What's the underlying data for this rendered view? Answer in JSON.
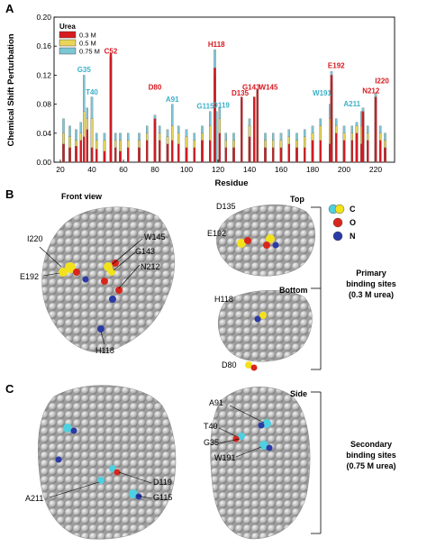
{
  "panels": {
    "a": "A",
    "b": "B",
    "c": "C"
  },
  "colors": {
    "s03": "#d71920",
    "s05": "#e8d55a",
    "s075": "#7cc6d6",
    "red_label": "#d71920",
    "cyan_label": "#3bb0c9",
    "protein": "#b8b8b8",
    "atom_c_yellow": "#f2e21c",
    "atom_c_cyan": "#4fd0e0",
    "atom_o": "#d9261c",
    "atom_n": "#2b3aa5"
  },
  "chart_data": {
    "type": "bar",
    "title": "",
    "xlabel": "Residue",
    "ylabel": "Chemical Shift Perturbation",
    "xlim": [
      16,
      232
    ],
    "ylim": [
      0,
      0.2
    ],
    "xticks": [
      20,
      40,
      60,
      80,
      100,
      120,
      140,
      160,
      180,
      200,
      220
    ],
    "yticks": [
      0.0,
      0.04,
      0.08,
      0.12,
      0.16,
      0.2
    ],
    "legend_title": "Urea",
    "legend_position": "top-left",
    "series": [
      {
        "name": "0.3 M",
        "color": "#d71920",
        "points": [
          [
            22,
            0.025
          ],
          [
            26,
            0.02
          ],
          [
            30,
            0.022
          ],
          [
            33,
            0.03
          ],
          [
            35,
            0.035
          ],
          [
            37,
            0.045
          ],
          [
            40,
            0.02
          ],
          [
            43,
            0.018
          ],
          [
            48,
            0.015
          ],
          [
            52,
            0.15
          ],
          [
            55,
            0.02
          ],
          [
            58,
            0.015
          ],
          [
            63,
            0.02
          ],
          [
            70,
            0.02
          ],
          [
            75,
            0.03
          ],
          [
            80,
            0.06
          ],
          [
            83,
            0.03
          ],
          [
            88,
            0.025
          ],
          [
            91,
            0.03
          ],
          [
            95,
            0.025
          ],
          [
            100,
            0.02
          ],
          [
            105,
            0.02
          ],
          [
            110,
            0.03
          ],
          [
            115,
            0.03
          ],
          [
            118,
            0.13
          ],
          [
            121,
            0.04
          ],
          [
            125,
            0.02
          ],
          [
            130,
            0.02
          ],
          [
            135,
            0.09
          ],
          [
            140,
            0.035
          ],
          [
            143,
            0.09
          ],
          [
            145,
            0.1
          ],
          [
            150,
            0.02
          ],
          [
            155,
            0.02
          ],
          [
            160,
            0.02
          ],
          [
            165,
            0.025
          ],
          [
            170,
            0.02
          ],
          [
            175,
            0.02
          ],
          [
            180,
            0.03
          ],
          [
            185,
            0.03
          ],
          [
            191,
            0.025
          ],
          [
            192,
            0.12
          ],
          [
            195,
            0.04
          ],
          [
            200,
            0.03
          ],
          [
            205,
            0.03
          ],
          [
            208,
            0.04
          ],
          [
            211,
            0.025
          ],
          [
            212,
            0.07
          ],
          [
            215,
            0.03
          ],
          [
            220,
            0.09
          ],
          [
            223,
            0.03
          ],
          [
            226,
            0.02
          ]
        ]
      },
      {
        "name": "0.5 M",
        "color": "#e8d55a",
        "points": [
          [
            22,
            0.04
          ],
          [
            26,
            0.035
          ],
          [
            30,
            0.03
          ],
          [
            33,
            0.04
          ],
          [
            35,
            0.07
          ],
          [
            37,
            0.06
          ],
          [
            40,
            0.06
          ],
          [
            43,
            0.03
          ],
          [
            48,
            0.03
          ],
          [
            52,
            0.145
          ],
          [
            55,
            0.03
          ],
          [
            58,
            0.03
          ],
          [
            63,
            0.03
          ],
          [
            70,
            0.03
          ],
          [
            75,
            0.04
          ],
          [
            80,
            0.055
          ],
          [
            83,
            0.04
          ],
          [
            88,
            0.035
          ],
          [
            91,
            0.05
          ],
          [
            95,
            0.04
          ],
          [
            100,
            0.035
          ],
          [
            105,
            0.03
          ],
          [
            110,
            0.04
          ],
          [
            115,
            0.05
          ],
          [
            118,
            0.12
          ],
          [
            121,
            0.06
          ],
          [
            125,
            0.03
          ],
          [
            130,
            0.03
          ],
          [
            135,
            0.08
          ],
          [
            140,
            0.05
          ],
          [
            143,
            0.08
          ],
          [
            145,
            0.095
          ],
          [
            150,
            0.03
          ],
          [
            155,
            0.03
          ],
          [
            160,
            0.03
          ],
          [
            165,
            0.035
          ],
          [
            170,
            0.03
          ],
          [
            175,
            0.035
          ],
          [
            180,
            0.04
          ],
          [
            185,
            0.05
          ],
          [
            191,
            0.06
          ],
          [
            192,
            0.11
          ],
          [
            195,
            0.05
          ],
          [
            200,
            0.04
          ],
          [
            205,
            0.04
          ],
          [
            208,
            0.05
          ],
          [
            211,
            0.05
          ],
          [
            212,
            0.065
          ],
          [
            215,
            0.04
          ],
          [
            220,
            0.085
          ],
          [
            223,
            0.04
          ],
          [
            226,
            0.03
          ]
        ]
      },
      {
        "name": "0.75 M",
        "color": "#7cc6d6",
        "points": [
          [
            22,
            0.06
          ],
          [
            26,
            0.05
          ],
          [
            30,
            0.045
          ],
          [
            33,
            0.055
          ],
          [
            35,
            0.12
          ],
          [
            37,
            0.075
          ],
          [
            40,
            0.09
          ],
          [
            43,
            0.04
          ],
          [
            48,
            0.04
          ],
          [
            52,
            0.145
          ],
          [
            55,
            0.04
          ],
          [
            58,
            0.04
          ],
          [
            63,
            0.04
          ],
          [
            70,
            0.04
          ],
          [
            75,
            0.05
          ],
          [
            80,
            0.065
          ],
          [
            83,
            0.05
          ],
          [
            88,
            0.045
          ],
          [
            91,
            0.08
          ],
          [
            95,
            0.05
          ],
          [
            100,
            0.045
          ],
          [
            105,
            0.04
          ],
          [
            110,
            0.05
          ],
          [
            115,
            0.07
          ],
          [
            118,
            0.155
          ],
          [
            119,
            0.07
          ],
          [
            121,
            0.075
          ],
          [
            125,
            0.04
          ],
          [
            130,
            0.04
          ],
          [
            135,
            0.085
          ],
          [
            140,
            0.06
          ],
          [
            143,
            0.09
          ],
          [
            145,
            0.1
          ],
          [
            150,
            0.04
          ],
          [
            155,
            0.04
          ],
          [
            160,
            0.04
          ],
          [
            165,
            0.045
          ],
          [
            170,
            0.04
          ],
          [
            175,
            0.045
          ],
          [
            180,
            0.05
          ],
          [
            185,
            0.06
          ],
          [
            191,
            0.08
          ],
          [
            192,
            0.125
          ],
          [
            195,
            0.06
          ],
          [
            200,
            0.05
          ],
          [
            205,
            0.05
          ],
          [
            208,
            0.055
          ],
          [
            211,
            0.07
          ],
          [
            212,
            0.075
          ],
          [
            215,
            0.05
          ],
          [
            220,
            0.095
          ],
          [
            223,
            0.05
          ],
          [
            226,
            0.04
          ]
        ]
      }
    ],
    "annotations": [
      {
        "text": "G35",
        "x": 35,
        "y": 0.124,
        "color": "cyan"
      },
      {
        "text": "T40",
        "x": 40,
        "y": 0.093,
        "color": "cyan"
      },
      {
        "text": "C52",
        "x": 52,
        "y": 0.15,
        "color": "red"
      },
      {
        "text": "D80",
        "x": 80,
        "y": 0.1,
        "color": "red"
      },
      {
        "text": "A91",
        "x": 91,
        "y": 0.083,
        "color": "cyan"
      },
      {
        "text": "G115",
        "x": 112,
        "y": 0.074,
        "color": "cyan"
      },
      {
        "text": "H118",
        "x": 119,
        "y": 0.159,
        "color": "red"
      },
      {
        "text": "D119",
        "x": 122,
        "y": 0.075,
        "color": "cyan"
      },
      {
        "text": "D135",
        "x": 134,
        "y": 0.092,
        "color": "red"
      },
      {
        "text": "G143",
        "x": 141,
        "y": 0.1,
        "color": "red"
      },
      {
        "text": "W145",
        "x": 152,
        "y": 0.1,
        "color": "red"
      },
      {
        "text": "W191",
        "x": 186,
        "y": 0.092,
        "color": "cyan"
      },
      {
        "text": "E192",
        "x": 195,
        "y": 0.13,
        "color": "red"
      },
      {
        "text": "A211",
        "x": 205,
        "y": 0.077,
        "color": "cyan"
      },
      {
        "text": "N212",
        "x": 217,
        "y": 0.095,
        "color": "red"
      },
      {
        "text": "I220",
        "x": 224,
        "y": 0.109,
        "color": "red"
      }
    ]
  },
  "panel_b": {
    "front_view": "Front view",
    "top": "Top",
    "bottom": "Bottom",
    "labels_front": [
      "I220",
      "W145",
      "G143",
      "N212",
      "E192",
      "H118"
    ],
    "labels_top": [
      "D135",
      "E192"
    ],
    "labels_bottom": [
      "H118",
      "D80"
    ],
    "legend": {
      "c": "C",
      "o": "O",
      "n": "N"
    },
    "caption": [
      "Primary",
      "binding sites",
      "(0.3 M urea)"
    ]
  },
  "panel_c": {
    "side": "Side",
    "labels_left": [
      "D119",
      "A211",
      "G115"
    ],
    "labels_right": [
      "A91",
      "T40",
      "G35",
      "W191"
    ],
    "caption": [
      "Secondary",
      "binding sites",
      "(0.75 M urea)"
    ]
  }
}
